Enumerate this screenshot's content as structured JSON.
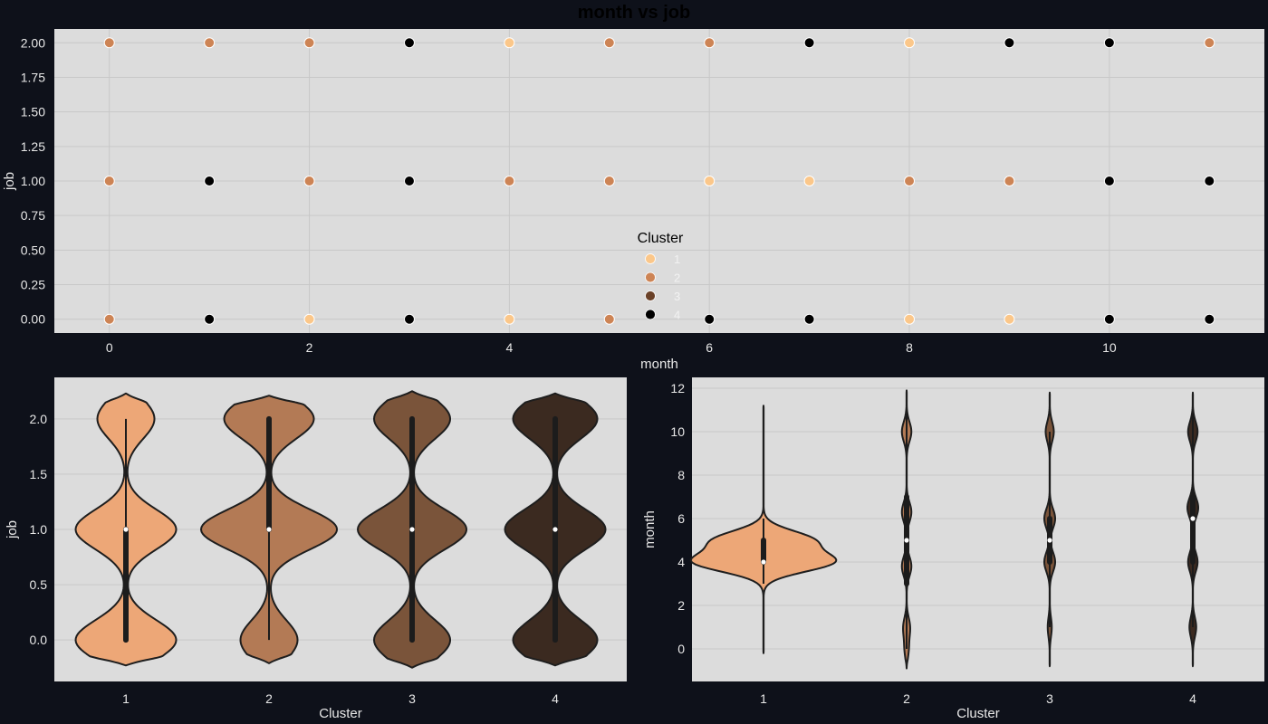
{
  "figure": {
    "title": "month vs job",
    "background": "#0e111a",
    "panel_background": "#dcdcdc"
  },
  "chart_data": [
    {
      "type": "scatter",
      "title": "month vs job",
      "xlabel": "month",
      "ylabel": "job",
      "xlim": [
        -0.55,
        11.55
      ],
      "ylim": [
        -0.1,
        2.1
      ],
      "xticks": [
        0,
        2,
        4,
        6,
        8,
        10
      ],
      "yticks": [
        0.0,
        0.25,
        0.5,
        0.75,
        1.0,
        1.25,
        1.5,
        1.75,
        2.0
      ],
      "ytick_labels": [
        "0.00",
        "0.25",
        "0.50",
        "0.75",
        "1.00",
        "1.25",
        "1.50",
        "1.75",
        "2.00"
      ],
      "grid": true,
      "legend": {
        "title": "Cluster",
        "placement": "center-bottom",
        "entries": [
          {
            "label": "1",
            "color": "#fbc78a"
          },
          {
            "label": "2",
            "color": "#cd8455"
          },
          {
            "label": "3",
            "color": "#6a4128"
          },
          {
            "label": "4",
            "color": "#000000"
          }
        ]
      },
      "points": [
        {
          "x": 0,
          "y": 2,
          "cluster": "2"
        },
        {
          "x": 1,
          "y": 2,
          "cluster": "2"
        },
        {
          "x": 2,
          "y": 2,
          "cluster": "2"
        },
        {
          "x": 3,
          "y": 2,
          "cluster": "4"
        },
        {
          "x": 4,
          "y": 2,
          "cluster": "1"
        },
        {
          "x": 5,
          "y": 2,
          "cluster": "2"
        },
        {
          "x": 6,
          "y": 2,
          "cluster": "2"
        },
        {
          "x": 7,
          "y": 2,
          "cluster": "4"
        },
        {
          "x": 8,
          "y": 2,
          "cluster": "1"
        },
        {
          "x": 9,
          "y": 2,
          "cluster": "4"
        },
        {
          "x": 10,
          "y": 2,
          "cluster": "4"
        },
        {
          "x": 11,
          "y": 2,
          "cluster": "2"
        },
        {
          "x": 0,
          "y": 1,
          "cluster": "2"
        },
        {
          "x": 1,
          "y": 1,
          "cluster": "4"
        },
        {
          "x": 2,
          "y": 1,
          "cluster": "2"
        },
        {
          "x": 3,
          "y": 1,
          "cluster": "4"
        },
        {
          "x": 4,
          "y": 1,
          "cluster": "2"
        },
        {
          "x": 5,
          "y": 1,
          "cluster": "2"
        },
        {
          "x": 6,
          "y": 1,
          "cluster": "1"
        },
        {
          "x": 7,
          "y": 1,
          "cluster": "1"
        },
        {
          "x": 8,
          "y": 1,
          "cluster": "2"
        },
        {
          "x": 9,
          "y": 1,
          "cluster": "2"
        },
        {
          "x": 10,
          "y": 1,
          "cluster": "4"
        },
        {
          "x": 11,
          "y": 1,
          "cluster": "4"
        },
        {
          "x": 0,
          "y": 0,
          "cluster": "2"
        },
        {
          "x": 1,
          "y": 0,
          "cluster": "4"
        },
        {
          "x": 2,
          "y": 0,
          "cluster": "1"
        },
        {
          "x": 3,
          "y": 0,
          "cluster": "4"
        },
        {
          "x": 4,
          "y": 0,
          "cluster": "1"
        },
        {
          "x": 5,
          "y": 0,
          "cluster": "2"
        },
        {
          "x": 6,
          "y": 0,
          "cluster": "4"
        },
        {
          "x": 7,
          "y": 0,
          "cluster": "4"
        },
        {
          "x": 8,
          "y": 0,
          "cluster": "1"
        },
        {
          "x": 9,
          "y": 0,
          "cluster": "1"
        },
        {
          "x": 10,
          "y": 0,
          "cluster": "4"
        },
        {
          "x": 11,
          "y": 0,
          "cluster": "4"
        }
      ]
    },
    {
      "type": "violin",
      "xlabel": "Cluster",
      "ylabel": "job",
      "ylim": [
        -0.375,
        2.375
      ],
      "yticks": [
        0.0,
        0.5,
        1.0,
        1.5,
        2.0
      ],
      "ytick_labels": [
        "0.0",
        "0.5",
        "1.0",
        "1.5",
        "2.0"
      ],
      "categories": [
        "1",
        "2",
        "3",
        "4"
      ],
      "grid": true,
      "series": [
        {
          "category": "1",
          "color": "#eda777",
          "median": 1,
          "q1": 0,
          "q3": 1,
          "whisker_low": 0,
          "whisker_high": 2,
          "extent": [
            -0.23,
            2.23
          ],
          "density": [
            {
              "y": 0,
              "w": 0.74
            },
            {
              "y": 1,
              "w": 0.74
            },
            {
              "y": 2,
              "w": 0.42
            }
          ]
        },
        {
          "category": "2",
          "color": "#b37a55",
          "median": 1,
          "q1": 1,
          "q3": 2,
          "whisker_low": 0,
          "whisker_high": 2,
          "extent": [
            -0.21,
            2.21
          ],
          "density": [
            {
              "y": 0,
              "w": 0.42
            },
            {
              "y": 1,
              "w": 1.0
            },
            {
              "y": 2,
              "w": 0.66
            }
          ]
        },
        {
          "category": "3",
          "color": "#7a543a",
          "median": 1,
          "q1": 0,
          "q3": 2,
          "whisker_low": 0,
          "whisker_high": 2,
          "extent": [
            -0.25,
            2.25
          ],
          "density": [
            {
              "y": 0,
              "w": 0.56
            },
            {
              "y": 1,
              "w": 0.8
            },
            {
              "y": 2,
              "w": 0.56
            }
          ]
        },
        {
          "category": "4",
          "color": "#3b2a20",
          "median": 1,
          "q1": 0,
          "q3": 2,
          "whisker_low": 0,
          "whisker_high": 2,
          "extent": [
            -0.23,
            2.23
          ],
          "density": [
            {
              "y": 0,
              "w": 0.62
            },
            {
              "y": 1,
              "w": 0.74
            },
            {
              "y": 2,
              "w": 0.62
            }
          ]
        }
      ]
    },
    {
      "type": "violin",
      "xlabel": "Cluster",
      "ylabel": "month",
      "ylim": [
        -1.5,
        12.5
      ],
      "yticks": [
        0,
        2,
        4,
        6,
        8,
        10,
        12
      ],
      "ytick_labels": [
        "0",
        "2",
        "4",
        "6",
        "8",
        "10",
        "12"
      ],
      "categories": [
        "1",
        "2",
        "3",
        "4"
      ],
      "grid": true,
      "series": [
        {
          "category": "1",
          "color": "#eda777",
          "median": 4,
          "q1": 4,
          "q3": 5,
          "whisker_low": 3,
          "whisker_high": 6,
          "extent": [
            -0.2,
            11.2
          ],
          "density": [
            {
              "y": 4,
              "w": 1.0
            },
            {
              "y": 5,
              "w": 0.7
            }
          ]
        },
        {
          "category": "2",
          "color": "#b37a55",
          "median": 5,
          "q1": 3,
          "q3": 7,
          "whisker_low": 0,
          "whisker_high": 11,
          "extent": [
            -0.9,
            11.9
          ],
          "density": [
            {
              "y": 0,
              "w": 0.03
            },
            {
              "y": 1,
              "w": 0.05
            },
            {
              "y": 3.8,
              "w": 0.07
            },
            {
              "y": 6.3,
              "w": 0.07
            },
            {
              "y": 10,
              "w": 0.07
            }
          ]
        },
        {
          "category": "3",
          "color": "#7a543a",
          "median": 5,
          "q1": 4,
          "q3": 6,
          "whisker_low": 1,
          "whisker_high": 10,
          "extent": [
            -0.8,
            11.8
          ],
          "density": [
            {
              "y": 1,
              "w": 0.03
            },
            {
              "y": 4,
              "w": 0.08
            },
            {
              "y": 6,
              "w": 0.08
            },
            {
              "y": 10,
              "w": 0.06
            }
          ]
        },
        {
          "category": "4",
          "color": "#3b2a20",
          "median": 6,
          "q1": 4,
          "q3": 7,
          "whisker_low": 1,
          "whisker_high": 11,
          "extent": [
            -0.8,
            11.8
          ],
          "density": [
            {
              "y": 1,
              "w": 0.05
            },
            {
              "y": 4,
              "w": 0.07
            },
            {
              "y": 6.5,
              "w": 0.08
            },
            {
              "y": 10,
              "w": 0.07
            }
          ]
        }
      ]
    }
  ]
}
